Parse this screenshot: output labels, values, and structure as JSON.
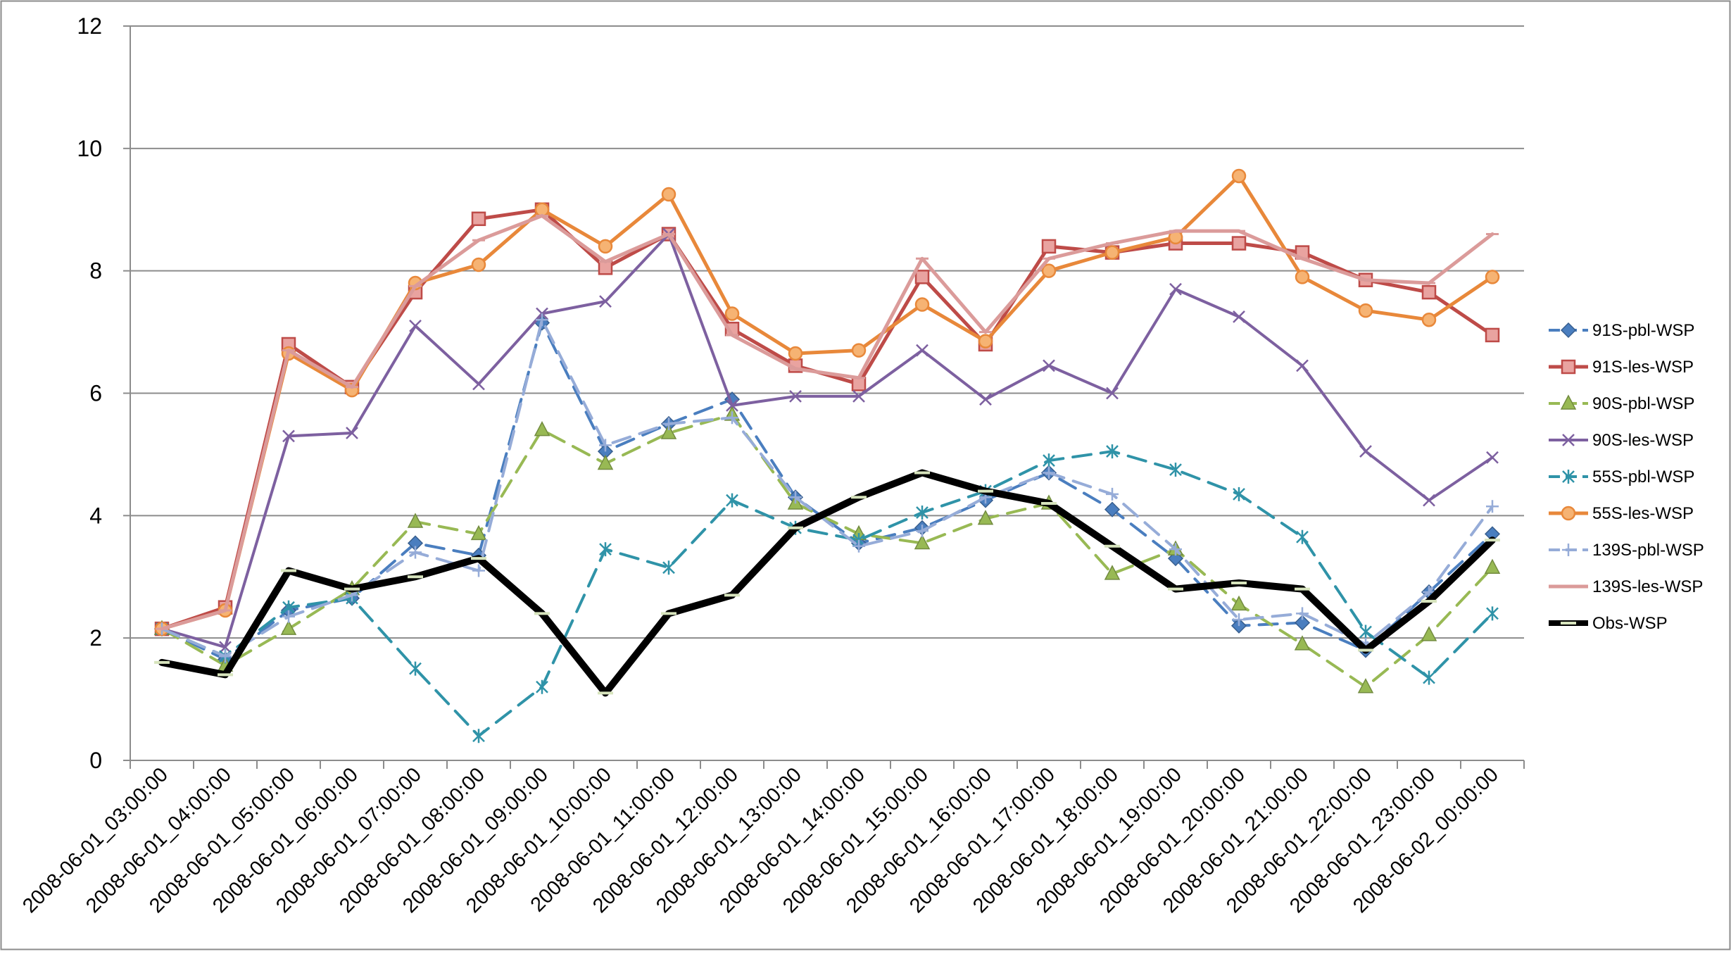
{
  "chart_data": {
    "type": "line",
    "title": "",
    "xlabel": "",
    "ylabel": "",
    "ylim": [
      0,
      12
    ],
    "yticks": [
      "0",
      "2",
      "4",
      "6",
      "8",
      "10",
      "12"
    ],
    "grid": "horizontal",
    "legend_position": "right",
    "categories": [
      "2008-06-01_03:00:00",
      "2008-06-01_04:00:00",
      "2008-06-01_05:00:00",
      "2008-06-01_06:00:00",
      "2008-06-01_07:00:00",
      "2008-06-01_08:00:00",
      "2008-06-01_09:00:00",
      "2008-06-01_10:00:00",
      "2008-06-01_11:00:00",
      "2008-06-01_12:00:00",
      "2008-06-01_13:00:00",
      "2008-06-01_14:00:00",
      "2008-06-01_15:00:00",
      "2008-06-01_16:00:00",
      "2008-06-01_17:00:00",
      "2008-06-01_18:00:00",
      "2008-06-01_19:00:00",
      "2008-06-01_20:00:00",
      "2008-06-01_21:00:00",
      "2008-06-01_22:00:00",
      "2008-06-01_23:00:00",
      "2008-06-02_00:00:00"
    ],
    "series": [
      {
        "name": "91S-pbl-WSP",
        "color": "#4a7ebf",
        "dash": "long",
        "marker": "diamond",
        "width": 4,
        "values": [
          2.15,
          1.65,
          2.45,
          2.65,
          3.55,
          3.35,
          7.15,
          5.05,
          5.5,
          5.9,
          4.3,
          3.55,
          3.8,
          4.25,
          4.7,
          4.1,
          3.3,
          2.2,
          2.25,
          1.8,
          2.75,
          3.7
        ]
      },
      {
        "name": "91S-les-WSP",
        "color": "#be4b48",
        "dash": "solid",
        "marker": "square",
        "width": 5,
        "values": [
          2.15,
          2.5,
          6.8,
          6.1,
          7.65,
          8.85,
          9.0,
          8.05,
          8.6,
          7.05,
          6.45,
          6.15,
          7.9,
          6.8,
          8.4,
          8.3,
          8.45,
          8.45,
          8.3,
          7.85,
          7.65,
          6.95
        ]
      },
      {
        "name": "90S-pbl-WSP",
        "color": "#98b954",
        "dash": "long",
        "marker": "triangle",
        "width": 4,
        "values": [
          2.15,
          1.55,
          2.15,
          2.8,
          3.9,
          3.7,
          5.4,
          4.85,
          5.35,
          5.65,
          4.2,
          3.7,
          3.55,
          3.95,
          4.2,
          3.05,
          3.45,
          2.55,
          1.9,
          1.2,
          2.05,
          3.15
        ]
      },
      {
        "name": "90S-les-WSP",
        "color": "#7d60a0",
        "dash": "solid",
        "marker": "x",
        "width": 4,
        "values": [
          2.15,
          1.85,
          5.3,
          5.35,
          7.1,
          6.15,
          7.3,
          7.5,
          8.6,
          5.8,
          5.95,
          5.95,
          6.7,
          5.9,
          6.45,
          6.0,
          7.7,
          7.25,
          6.45,
          5.05,
          4.25,
          4.95
        ]
      },
      {
        "name": "55S-pbl-WSP",
        "color": "#2f93a8",
        "dash": "long",
        "marker": "star",
        "width": 4,
        "values": [
          2.15,
          1.7,
          2.5,
          2.65,
          1.5,
          0.4,
          1.2,
          3.45,
          3.15,
          4.25,
          3.8,
          3.6,
          4.05,
          4.4,
          4.9,
          5.05,
          4.75,
          4.35,
          3.65,
          2.1,
          1.35,
          2.4
        ]
      },
      {
        "name": "55S-les-WSP",
        "color": "#e8883a",
        "dash": "solid",
        "marker": "circle",
        "width": 5,
        "values": [
          2.15,
          2.45,
          6.65,
          6.05,
          7.8,
          8.1,
          9.0,
          8.4,
          9.25,
          7.3,
          6.65,
          6.7,
          7.45,
          6.85,
          8.0,
          8.3,
          8.55,
          9.55,
          7.9,
          7.35,
          7.2,
          7.9
        ]
      },
      {
        "name": "139S-pbl-WSP",
        "color": "#96acd8",
        "dash": "long",
        "marker": "plus",
        "width": 4,
        "values": [
          2.15,
          1.7,
          2.35,
          2.7,
          3.4,
          3.1,
          7.2,
          5.15,
          5.5,
          5.6,
          4.3,
          3.5,
          3.75,
          4.3,
          4.7,
          4.35,
          3.45,
          2.3,
          2.4,
          1.9,
          2.75,
          4.15
        ]
      },
      {
        "name": "139S-les-WSP",
        "color": "#db9b9a",
        "dash": "solid",
        "marker": "dash",
        "width": 5,
        "values": [
          2.15,
          2.45,
          6.7,
          6.1,
          7.75,
          8.5,
          8.9,
          8.15,
          8.6,
          6.95,
          6.4,
          6.25,
          8.2,
          7.0,
          8.2,
          8.45,
          8.65,
          8.65,
          8.2,
          7.85,
          7.8,
          8.6
        ]
      },
      {
        "name": "Obs-WSP",
        "color": "#000000",
        "dash": "solid",
        "marker": "dash-green",
        "width": 10,
        "values": [
          1.6,
          1.4,
          3.1,
          2.8,
          3.0,
          3.3,
          2.4,
          1.1,
          2.4,
          2.7,
          3.8,
          4.3,
          4.7,
          4.4,
          4.2,
          3.5,
          2.8,
          2.9,
          2.8,
          1.8,
          2.6,
          3.6
        ]
      }
    ]
  }
}
